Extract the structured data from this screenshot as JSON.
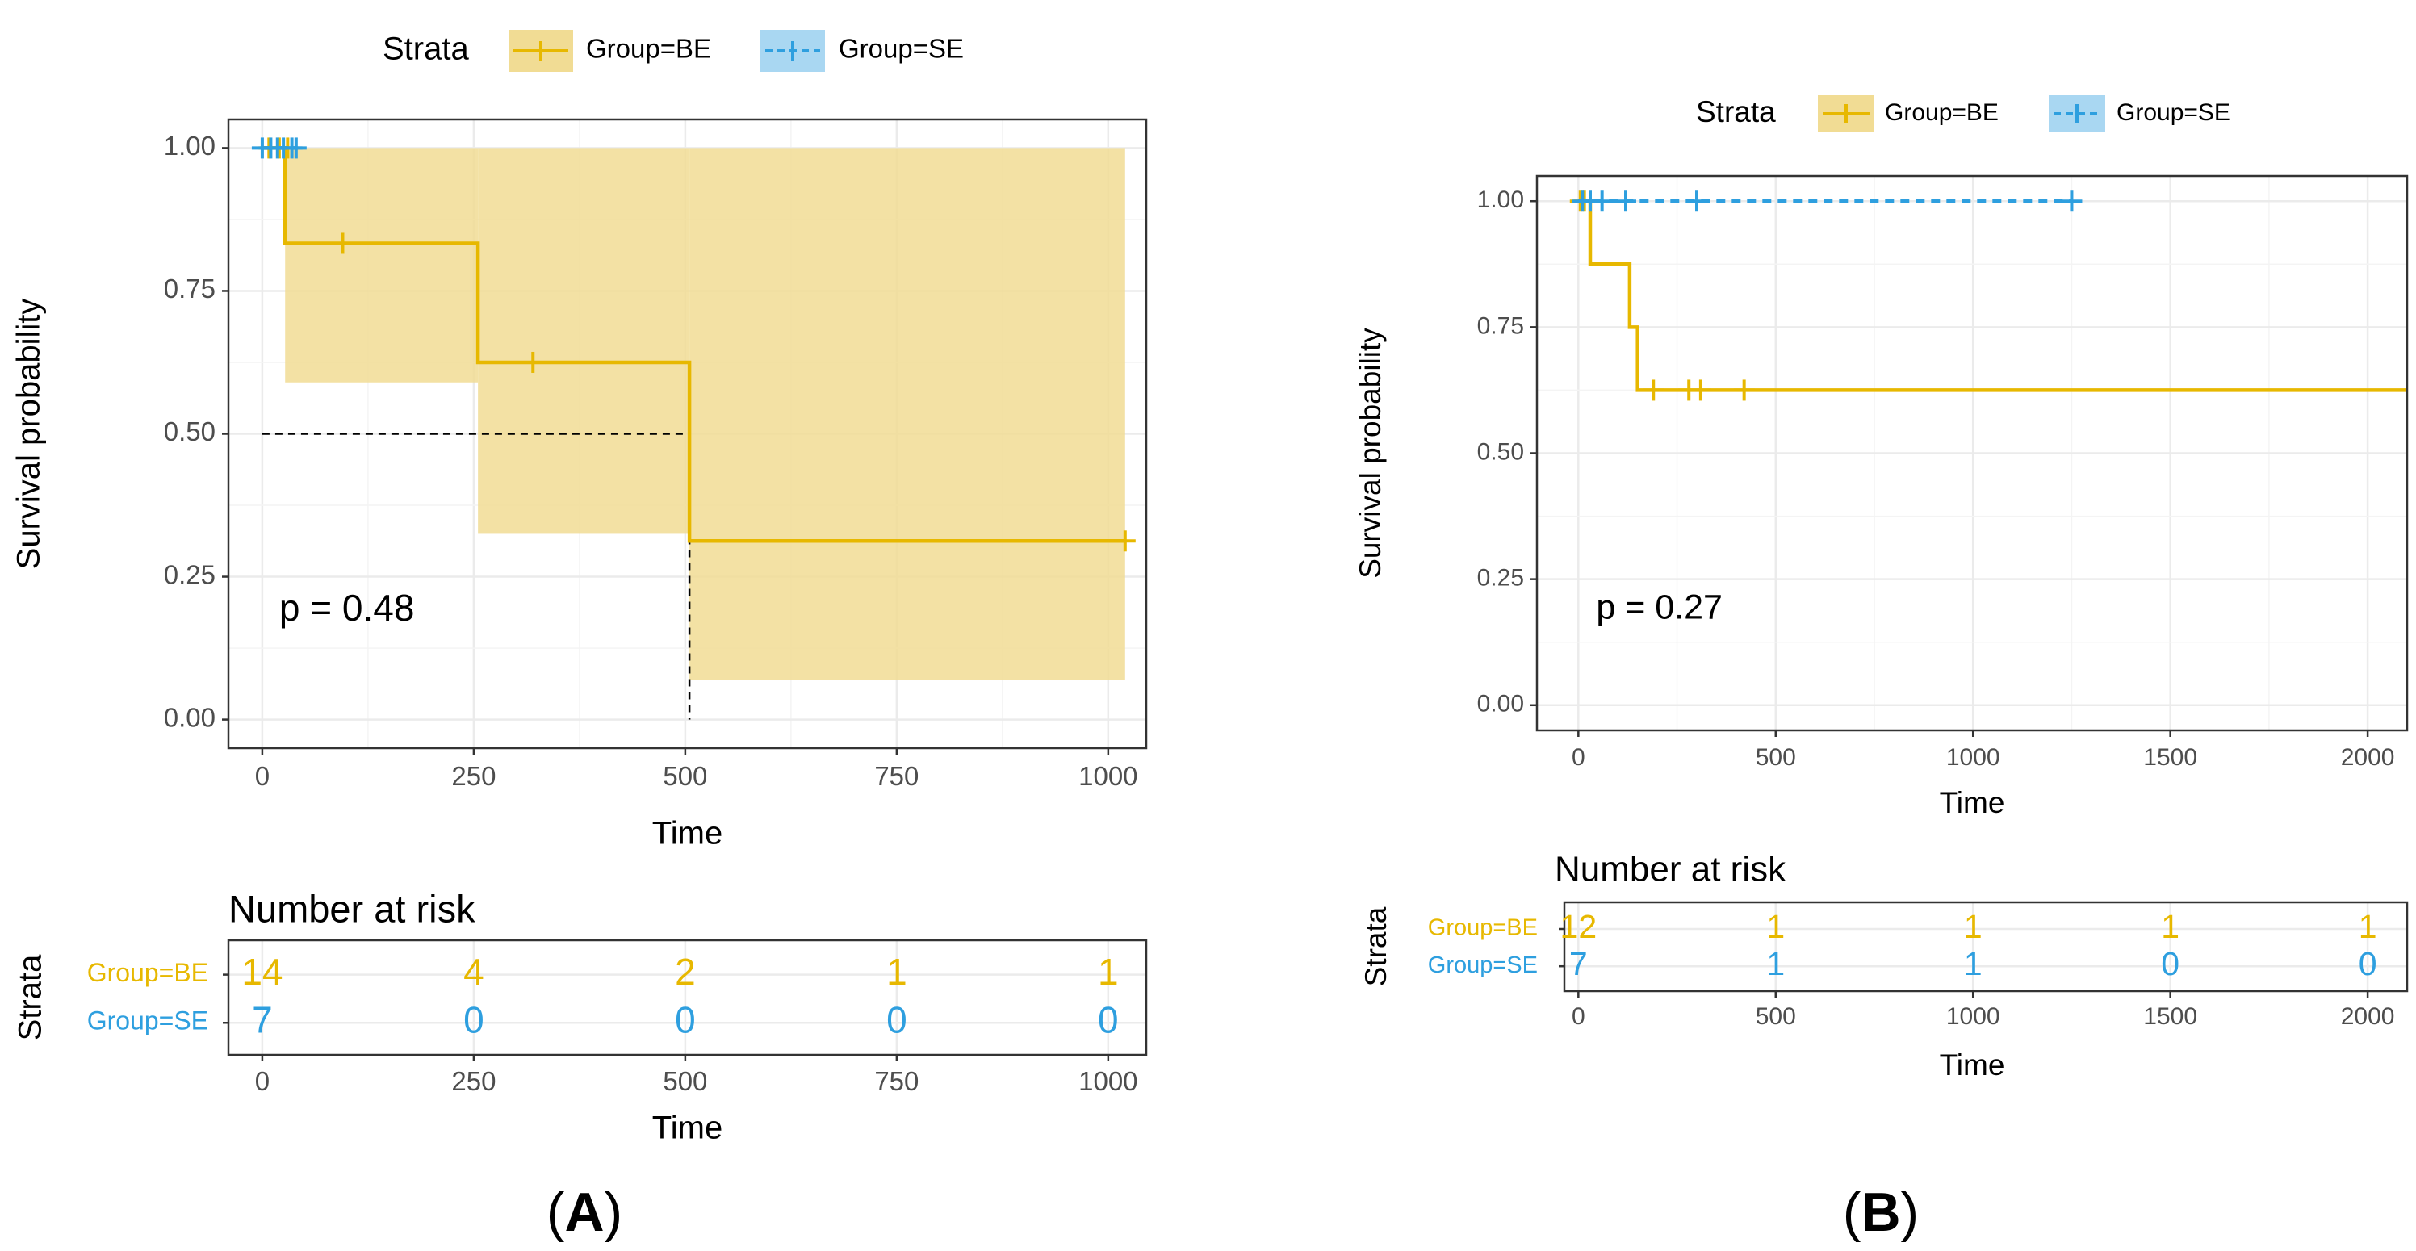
{
  "chart_data": [
    {
      "panel": "A",
      "type": "line",
      "title": "",
      "xlabel": "Time",
      "ylabel": "Survival probability",
      "xlim": [
        -40,
        1045
      ],
      "ylim": [
        -0.05,
        1.05
      ],
      "x_ticks": [
        0,
        250,
        500,
        750,
        1000
      ],
      "y_ticks": [
        0.0,
        0.25,
        0.5,
        0.75,
        1.0
      ],
      "y_tick_labels": [
        "0.00",
        "0.25",
        "0.50",
        "0.75",
        "1.00"
      ],
      "grid": true,
      "legend": {
        "title": "Strata",
        "position": "top",
        "entries": [
          "Group=BE",
          "Group=SE"
        ]
      },
      "series": [
        {
          "name": "Group=BE",
          "color": "#E7B800",
          "dash": false,
          "steps": [
            [
              0,
              1.0
            ],
            [
              27,
              1.0
            ],
            [
              27,
              0.8333
            ],
            [
              255,
              0.8333
            ],
            [
              255,
              0.625
            ],
            [
              505,
              0.625
            ],
            [
              505,
              0.3125
            ],
            [
              1020,
              0.3125
            ]
          ],
          "censor_x": [
            8,
            20,
            30,
            95,
            320,
            1020
          ],
          "censor_y": [
            1.0,
            1.0,
            1.0,
            0.8333,
            0.625,
            0.3125
          ],
          "ci": [
            {
              "x0": 0,
              "x1": 27,
              "lo": 1.0,
              "hi": 1.0
            },
            {
              "x0": 27,
              "x1": 255,
              "lo": 0.59,
              "hi": 1.0
            },
            {
              "x0": 255,
              "x1": 505,
              "lo": 0.325,
              "hi": 1.0
            },
            {
              "x0": 505,
              "x1": 1020,
              "lo": 0.07,
              "hi": 1.0
            }
          ]
        },
        {
          "name": "Group=SE",
          "color": "#2E9FDF",
          "dash": true,
          "steps": [
            [
              0,
              1.0
            ],
            [
              40,
              1.0
            ]
          ],
          "censor_x": [
            0,
            10,
            18,
            25,
            35,
            40
          ],
          "censor_y": [
            1.0,
            1.0,
            1.0,
            1.0,
            1.0,
            1.0
          ],
          "ci": []
        }
      ],
      "median_line": {
        "x": 505,
        "y": 0.5
      },
      "annotation": "p = 0.48",
      "annotation_at": [
        20,
        0.19
      ],
      "risk_table": {
        "title": "Number at risk",
        "ylabel": "Strata",
        "xlabel": "Time",
        "times": [
          0,
          250,
          500,
          750,
          1000
        ],
        "rows": [
          {
            "name": "Group=BE",
            "counts": [
              "14",
              "4",
              "2",
              "1",
              "1"
            ]
          },
          {
            "name": "Group=SE",
            "counts": [
              "7",
              "0",
              "0",
              "0",
              "0"
            ]
          }
        ]
      }
    },
    {
      "panel": "B",
      "type": "line",
      "title": "",
      "xlabel": "Time",
      "ylabel": "Survival probability",
      "xlim": [
        -105,
        2100
      ],
      "ylim": [
        -0.05,
        1.05
      ],
      "x_ticks": [
        0,
        500,
        1000,
        1500,
        2000
      ],
      "y_ticks": [
        0.0,
        0.25,
        0.5,
        0.75,
        1.0
      ],
      "y_tick_labels": [
        "0.00",
        "0.25",
        "0.50",
        "0.75",
        "1.00"
      ],
      "grid": true,
      "legend": {
        "title": "Strata",
        "position": "top",
        "entries": [
          "Group=BE",
          "Group=SE"
        ]
      },
      "series": [
        {
          "name": "Group=BE",
          "color": "#E7B800",
          "dash": false,
          "steps": [
            [
              0,
              1.0
            ],
            [
              30,
              1.0
            ],
            [
              30,
              0.875
            ],
            [
              130,
              0.875
            ],
            [
              130,
              0.75
            ],
            [
              150,
              0.75
            ],
            [
              150,
              0.625
            ],
            [
              2100,
              0.625
            ]
          ],
          "censor_x": [
            5,
            15,
            190,
            280,
            310,
            420
          ],
          "censor_y": [
            1.0,
            1.0,
            0.625,
            0.625,
            0.625,
            0.625
          ],
          "ci": []
        },
        {
          "name": "Group=SE",
          "color": "#2E9FDF",
          "dash": true,
          "steps": [
            [
              0,
              1.0
            ],
            [
              1250,
              1.0
            ]
          ],
          "censor_x": [
            10,
            30,
            60,
            120,
            300,
            1250
          ],
          "censor_y": [
            1.0,
            1.0,
            1.0,
            1.0,
            1.0,
            1.0
          ],
          "ci": []
        }
      ],
      "annotation": "p = 0.27",
      "annotation_at": [
        45,
        0.19
      ],
      "risk_table": {
        "title": "Number at risk",
        "ylabel": "Strata",
        "xlabel": "Time",
        "times": [
          0,
          500,
          1000,
          1500,
          2000
        ],
        "rows": [
          {
            "name": "Group=BE",
            "counts": [
              "12",
              "1",
              "1",
              "1",
              "1"
            ]
          },
          {
            "name": "Group=SE",
            "counts": [
              "7",
              "1",
              "1",
              "0",
              "0"
            ]
          }
        ]
      }
    }
  ],
  "panel_labels": {
    "A": {
      "open": "(",
      "letter": "A",
      "close": ")"
    },
    "B": {
      "open": "(",
      "letter": "B",
      "close": ")"
    }
  },
  "colors": {
    "BE": "#E7B800",
    "SE": "#2E9FDF",
    "ci_BE": "#F1DC94",
    "ci_SE": "#A9D7F2",
    "grid": "#EBEBEB",
    "axis_text": "#4D4D4D"
  }
}
